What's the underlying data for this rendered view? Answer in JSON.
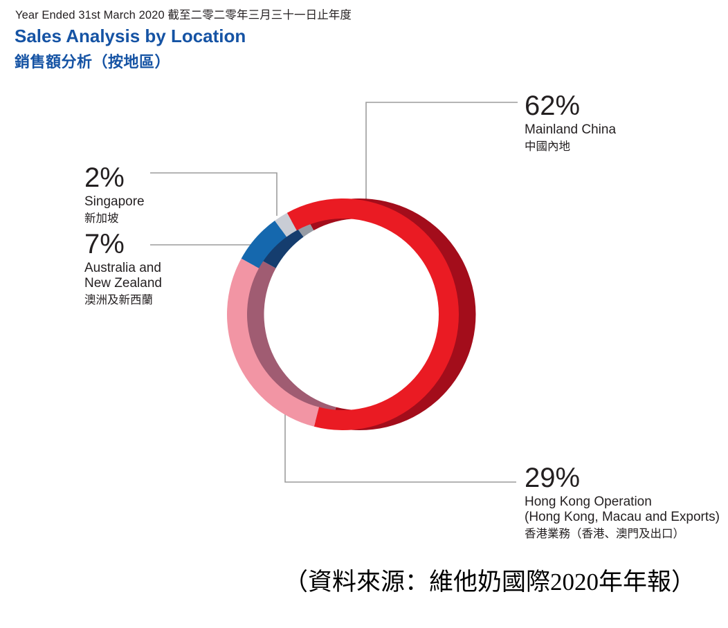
{
  "header": {
    "period_line": "Year Ended 31st March 2020 截至二零二零年三月三十一日止年度",
    "title_en": "Sales Analysis by Location",
    "title_zh": "銷售額分析（按地區）"
  },
  "palette": {
    "title_blue": "#1553A4",
    "text_dark": "#231F20",
    "leader_grey": "#9C9C9C"
  },
  "chart_data": {
    "type": "pie",
    "subtype": "3d-donut",
    "title": "Sales Analysis by Location 銷售額分析（按地區）",
    "period": "Year Ended 31st March 2020 截至二零二零年三月三十一日止年度",
    "unit": "percent of sales",
    "start_angle_deg": 331.2,
    "clockwise": true,
    "legend_position": "callouts",
    "segments": [
      {
        "id": "mainland-china",
        "label_en": "Mainland China",
        "label_zh": "中國內地",
        "value": 62,
        "pct_label": "62%",
        "color": "#EA1B23",
        "shade_color": "#A30D1B"
      },
      {
        "id": "hong-kong",
        "label_en": "Hong Kong Operation (Hong Kong, Macau and Exports)",
        "label_zh": "香港業務（香港、澳門及出口）",
        "value": 29,
        "pct_label": "29%",
        "color": "#F295A4",
        "shade_color": "#A05C72"
      },
      {
        "id": "australia-nz",
        "label_en": "Australia and New Zealand",
        "label_zh": "澳洲及新西蘭",
        "value": 7,
        "pct_label": "7%",
        "color": "#1568AE",
        "shade_color": "#153D6E"
      },
      {
        "id": "singapore",
        "label_en": "Singapore",
        "label_zh": "新加坡",
        "value": 2,
        "pct_label": "2%",
        "color": "#C9CDD5",
        "shade_color": "#969BA4"
      }
    ]
  },
  "callouts": {
    "mainland_china": {
      "pct": "62%",
      "lines": [
        "Mainland China"
      ],
      "zh": "中國內地"
    },
    "singapore": {
      "pct": "2%",
      "lines": [
        "Singapore"
      ],
      "zh": "新加坡"
    },
    "australia_nz": {
      "pct": "7%",
      "lines": [
        "Australia and",
        "New Zealand"
      ],
      "zh": "澳洲及新西蘭"
    },
    "hong_kong": {
      "pct": "29%",
      "lines": [
        "Hong Kong Operation",
        "(Hong Kong, Macau and Exports)"
      ],
      "zh": "香港業務（香港、澳門及出口）"
    }
  },
  "source_note": "（資料來源：維他奶國際2020年年報）"
}
